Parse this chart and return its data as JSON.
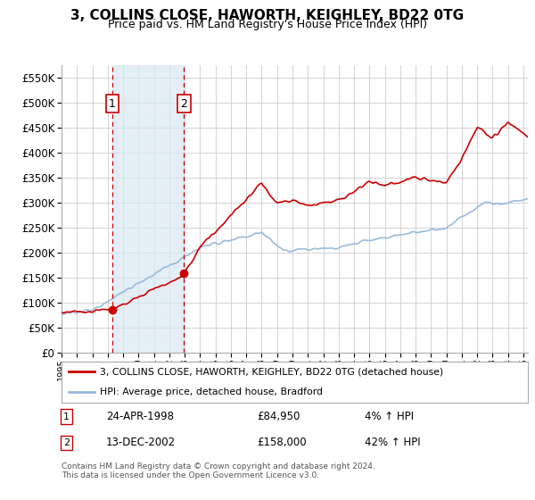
{
  "title": "3, COLLINS CLOSE, HAWORTH, KEIGHLEY, BD22 0TG",
  "subtitle": "Price paid vs. HM Land Registry's House Price Index (HPI)",
  "legend_label_red": "3, COLLINS CLOSE, HAWORTH, KEIGHLEY, BD22 0TG (detached house)",
  "legend_label_blue": "HPI: Average price, detached house, Bradford",
  "transaction1_date": "24-APR-1998",
  "transaction1_price": "£84,950",
  "transaction1_hpi": "4% ↑ HPI",
  "transaction2_date": "13-DEC-2002",
  "transaction2_price": "£158,000",
  "transaction2_hpi": "42% ↑ HPI",
  "footer": "Contains HM Land Registry data © Crown copyright and database right 2024.\nThis data is licensed under the Open Government Licence v3.0.",
  "ylim_min": 0,
  "ylim_max": 575000,
  "yticks": [
    0,
    50000,
    100000,
    150000,
    200000,
    250000,
    300000,
    350000,
    400000,
    450000,
    500000,
    550000
  ],
  "transaction1_x": 1998.3,
  "transaction1_y": 84950,
  "transaction2_x": 2002.95,
  "transaction2_y": 158000,
  "background_color": "#ffffff",
  "grid_color": "#cccccc",
  "red_color": "#cc0000",
  "blue_color": "#99bbdd",
  "vline1_x": 1998.3,
  "vline2_x": 2002.95,
  "vshade1_xmin": 1998.3,
  "vshade1_xmax": 2002.95,
  "xmin": 1995,
  "xmax": 2025.3
}
